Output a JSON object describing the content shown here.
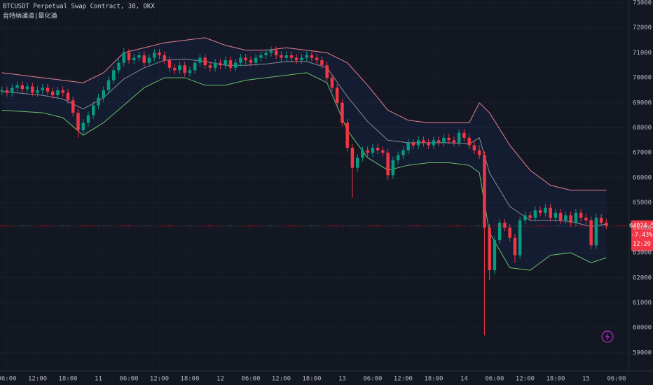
{
  "chart_data": {
    "type": "candlestick",
    "title": "BTCUSDT Perpetual Swap Contract, 30, OKX",
    "subtitle": "肯特纳通道|量化通",
    "up_color": "#089981",
    "down_color": "#f23645",
    "x": [
      -1,
      0,
      1,
      2,
      3,
      4,
      5,
      6,
      7,
      8,
      9,
      10,
      11,
      12,
      13,
      14,
      15,
      16,
      17,
      18,
      19,
      20,
      21,
      22,
      23,
      24,
      25,
      26,
      27,
      28,
      29,
      30,
      31,
      32,
      33,
      34,
      35,
      36,
      37,
      38,
      39,
      40,
      41,
      42,
      43,
      44,
      45,
      46,
      47,
      48,
      49,
      50,
      51,
      52,
      53,
      54,
      55,
      56,
      57,
      58,
      59,
      60,
      61,
      62,
      63,
      64,
      65,
      66,
      67,
      68,
      69,
      70,
      71,
      72,
      73,
      74,
      75,
      76,
      77,
      78,
      79,
      80,
      81,
      82,
      83,
      84,
      85,
      86,
      87,
      88,
      89,
      90,
      91,
      92,
      93,
      94,
      95,
      96,
      97,
      98,
      99,
      100,
      101,
      102,
      103,
      104,
      105,
      106,
      107,
      108,
      109,
      110,
      111,
      112,
      113,
      114,
      115,
      116,
      117,
      118
    ],
    "open": [
      69450,
      69500,
      69400,
      69600,
      69700,
      69550,
      69650,
      69400,
      69500,
      69600,
      69450,
      69300,
      69500,
      69400,
      69100,
      68600,
      67900,
      68200,
      68500,
      68900,
      69200,
      69500,
      69900,
      70300,
      70600,
      71000,
      70700,
      70800,
      70900,
      70600,
      70800,
      71000,
      70900,
      70700,
      70400,
      70300,
      70500,
      70200,
      70300,
      70600,
      70800,
      70500,
      70400,
      70600,
      70500,
      70700,
      70400,
      70600,
      70800,
      70700,
      70600,
      70800,
      70900,
      71000,
      71100,
      70900,
      70800,
      70900,
      70800,
      70700,
      70800,
      70900,
      70800,
      70700,
      70500,
      70000,
      69600,
      69000,
      68200,
      67200,
      66400,
      66800,
      67100,
      67000,
      67200,
      67100,
      67000,
      66100,
      66700,
      66900,
      67100,
      67400,
      67300,
      67500,
      67400,
      67300,
      67500,
      67400,
      67600,
      67500,
      67400,
      67800,
      67600,
      67300,
      67100,
      66900,
      64000,
      62300,
      63500,
      64200,
      64000,
      63600,
      62900,
      64300,
      64500,
      64400,
      64700,
      64600,
      64800,
      64400,
      64600,
      64300,
      64500,
      64200,
      64600,
      64400,
      64300,
      63300,
      64400,
      64200
    ],
    "high": [
      69650,
      69650,
      69750,
      69850,
      69850,
      69800,
      69800,
      69650,
      69750,
      69750,
      69600,
      69650,
      69650,
      69550,
      69250,
      68750,
      68350,
      68650,
      69050,
      69350,
      69650,
      70050,
      70450,
      70750,
      71200,
      71150,
      70950,
      71050,
      71050,
      70950,
      71150,
      71150,
      71050,
      70850,
      70550,
      70650,
      70650,
      70450,
      70750,
      70950,
      70950,
      70650,
      70750,
      70750,
      70850,
      70850,
      70750,
      70950,
      70950,
      70850,
      70950,
      71050,
      71150,
      71250,
      71250,
      71050,
      71050,
      71050,
      70950,
      70950,
      71050,
      71050,
      70950,
      70850,
      70650,
      70150,
      69750,
      69150,
      68350,
      67350,
      66950,
      67250,
      67250,
      67350,
      67350,
      67250,
      67150,
      66850,
      67050,
      67250,
      67550,
      67550,
      67650,
      67650,
      67550,
      67650,
      67650,
      67750,
      67750,
      67650,
      67950,
      67950,
      67750,
      67450,
      67300,
      67050,
      64150,
      63650,
      64350,
      64350,
      64150,
      63750,
      64450,
      64650,
      64650,
      64850,
      64850,
      64950,
      64950,
      64750,
      64750,
      64650,
      64650,
      64750,
      64750,
      64550,
      64450,
      64550,
      64550,
      64350
    ],
    "low": [
      69300,
      69250,
      69250,
      69450,
      69400,
      69400,
      69250,
      69250,
      69350,
      69300,
      69150,
      69150,
      69250,
      68950,
      68450,
      67600,
      67750,
      68050,
      68350,
      68750,
      69050,
      69350,
      69750,
      70150,
      70450,
      70550,
      70550,
      70650,
      70450,
      70450,
      70650,
      70750,
      70550,
      70250,
      70150,
      70150,
      70050,
      70050,
      70150,
      70450,
      70350,
      70250,
      70250,
      70350,
      70350,
      70250,
      70250,
      70450,
      70550,
      70450,
      70450,
      70650,
      70750,
      70850,
      70750,
      70650,
      70650,
      70650,
      70550,
      70550,
      70650,
      70650,
      70550,
      70350,
      69850,
      69450,
      68850,
      68050,
      67050,
      65200,
      66250,
      66650,
      66850,
      66850,
      66950,
      66850,
      65900,
      65950,
      66550,
      66750,
      66950,
      67150,
      67150,
      67250,
      67150,
      67150,
      67250,
      67250,
      67350,
      67250,
      67250,
      67450,
      67150,
      66950,
      66750,
      59700,
      61900,
      62150,
      63350,
      63850,
      63450,
      62600,
      62750,
      64150,
      64250,
      64250,
      64450,
      64450,
      64250,
      64250,
      64150,
      64150,
      64050,
      64050,
      64250,
      64150,
      63150,
      63150,
      64050,
      63950
    ],
    "close": [
      69500,
      69400,
      69600,
      69700,
      69550,
      69650,
      69400,
      69500,
      69600,
      69450,
      69300,
      69500,
      69400,
      69100,
      68600,
      67900,
      68200,
      68500,
      68900,
      69200,
      69500,
      69900,
      70300,
      70600,
      71000,
      70700,
      70800,
      70900,
      70600,
      70800,
      71000,
      70900,
      70700,
      70400,
      70300,
      70500,
      70200,
      70300,
      70600,
      70800,
      70500,
      70400,
      70600,
      70500,
      70700,
      70400,
      70600,
      70800,
      70700,
      70600,
      70800,
      70900,
      71000,
      71100,
      70900,
      70800,
      70900,
      70800,
      70700,
      70800,
      70900,
      70800,
      70700,
      70500,
      70000,
      69600,
      69000,
      68200,
      67200,
      66400,
      66800,
      67100,
      67000,
      67200,
      67100,
      67000,
      66100,
      66700,
      66900,
      67100,
      67400,
      67300,
      67500,
      67400,
      67300,
      67500,
      67400,
      67600,
      67500,
      67400,
      67800,
      67600,
      67300,
      67100,
      66900,
      64000,
      62300,
      63500,
      64200,
      64000,
      63600,
      62900,
      64300,
      64500,
      64400,
      64700,
      64600,
      64800,
      64400,
      64600,
      64300,
      64500,
      64200,
      64600,
      64400,
      64300,
      63300,
      64400,
      64200,
      64074.5
    ],
    "band_x": [
      -1,
      3,
      7,
      11,
      15,
      19,
      23,
      27,
      31,
      35,
      39,
      43,
      47,
      51,
      55,
      59,
      63,
      67,
      71,
      75,
      79,
      83,
      87,
      91,
      93,
      95,
      99,
      103,
      107,
      111,
      115,
      118
    ],
    "band_fill": "rgba(41,98,255,0.07)",
    "lines": [
      {
        "color": "#e57f8f",
        "values": [
          70200,
          70100,
          70000,
          69900,
          69800,
          70200,
          71000,
          71200,
          71400,
          71500,
          71600,
          71300,
          71100,
          71100,
          71200,
          71100,
          71000,
          70600,
          69700,
          68700,
          68300,
          68200,
          68200,
          68200,
          69000,
          68600,
          67300,
          66300,
          65700,
          65500,
          65500,
          65500
        ]
      },
      {
        "color": "#8a8d99",
        "values": [
          69450,
          69375,
          69300,
          69150,
          68750,
          69200,
          69950,
          70400,
          70700,
          70750,
          70650,
          70500,
          70500,
          70550,
          70650,
          70650,
          70400,
          69250,
          68250,
          67500,
          67400,
          67400,
          67400,
          67350,
          67600,
          66200,
          64850,
          64300,
          64300,
          64250,
          64050,
          64150
        ]
      },
      {
        "color": "#6abf69",
        "values": [
          68700,
          68650,
          68600,
          68400,
          67700,
          68200,
          68900,
          69600,
          70000,
          70000,
          69700,
          69700,
          69900,
          70000,
          70100,
          70200,
          69800,
          67900,
          66800,
          66300,
          66500,
          66600,
          66600,
          66500,
          66200,
          63800,
          62400,
          62300,
          62900,
          63000,
          62600,
          62800
        ]
      }
    ],
    "xlim": [
      -1.38,
      122.5
    ],
    "xticks": [
      {
        "value": 0,
        "label": "06:00"
      },
      {
        "value": 6,
        "label": "12:00"
      },
      {
        "value": 12,
        "label": "18:00"
      },
      {
        "value": 18,
        "label": "11"
      },
      {
        "value": 24,
        "label": "06:00"
      },
      {
        "value": 30,
        "label": "12:00"
      },
      {
        "value": 36,
        "label": "18:00"
      },
      {
        "value": 42,
        "label": "12"
      },
      {
        "value": 48,
        "label": "06:00"
      },
      {
        "value": 54,
        "label": "12:00"
      },
      {
        "value": 60,
        "label": "18:00"
      },
      {
        "value": 66,
        "label": "13"
      },
      {
        "value": 72,
        "label": "06:00"
      },
      {
        "value": 78,
        "label": "12:00"
      },
      {
        "value": 84,
        "label": "18:00"
      },
      {
        "value": 90,
        "label": "14"
      },
      {
        "value": 96,
        "label": "06:00"
      },
      {
        "value": 102,
        "label": "12:00"
      },
      {
        "value": 108,
        "label": "18:00"
      },
      {
        "value": 114,
        "label": "15"
      },
      {
        "value": 120,
        "label": "06:00"
      }
    ],
    "ylim": [
      58270,
      73110
    ],
    "yticks": [
      {
        "value": 59000,
        "label": "59000.0"
      },
      {
        "value": 60000,
        "label": "60000.0"
      },
      {
        "value": 61000,
        "label": "61000.0"
      },
      {
        "value": 62000,
        "label": "62000.0"
      },
      {
        "value": 63000,
        "label": "63000.0"
      },
      {
        "value": 64000,
        "label": "64000.0"
      },
      {
        "value": 65000,
        "label": "65000.0"
      },
      {
        "value": 66000,
        "label": "66000.0"
      },
      {
        "value": 67000,
        "label": "67000.0"
      },
      {
        "value": 68000,
        "label": "68000.0"
      },
      {
        "value": 69000,
        "label": "69000.0"
      },
      {
        "value": 70000,
        "label": "70000.0"
      },
      {
        "value": 71000,
        "label": "71000.0"
      },
      {
        "value": 72000,
        "label": "72000.0"
      },
      {
        "value": 73000,
        "label": "73000.0"
      }
    ],
    "grid": true,
    "last_price": {
      "value": 64074.5,
      "change": "-7.43%",
      "countdown": "12:20"
    }
  }
}
